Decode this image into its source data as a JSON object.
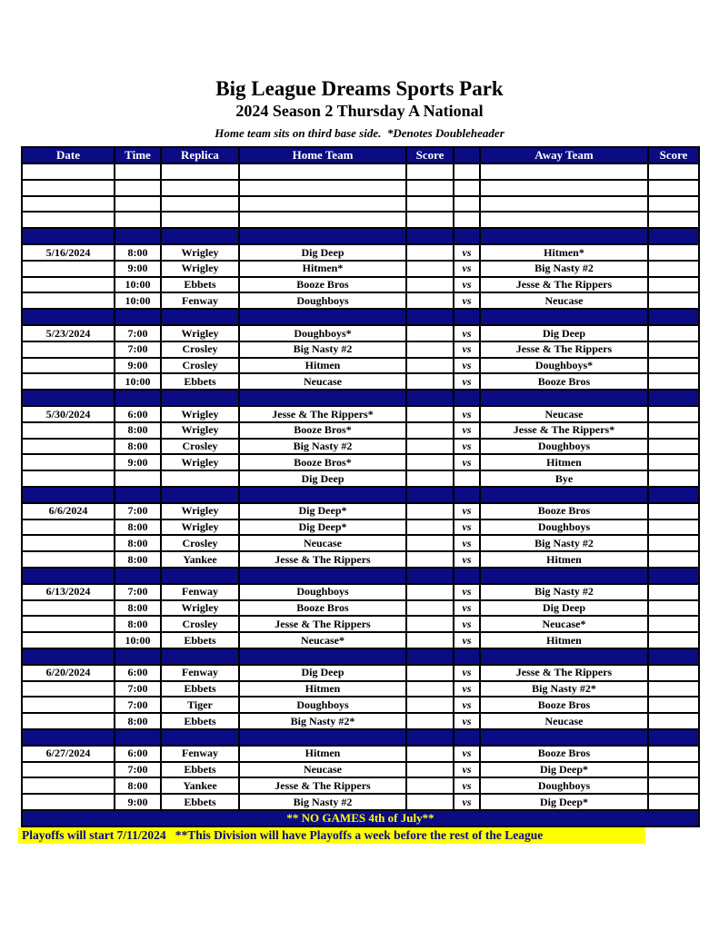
{
  "page": {
    "title": "Big League Dreams Sports Park",
    "subtitle": "2024 Season 2 Thursday A National",
    "note": "Home team sits on third base side.  *Denotes Doubleheader"
  },
  "colors": {
    "navy": "#0b0b84",
    "yellow": "#ffff00",
    "border": "#000000",
    "header_text": "#ffffff"
  },
  "table": {
    "headers": [
      "Date",
      "Time",
      "Replica",
      "Home Team",
      "Score",
      "",
      "Away Team",
      "Score"
    ],
    "empty_leading_rows": 4,
    "blocks": [
      {
        "date": "5/16/2024",
        "games": [
          {
            "time": "8:00",
            "replica": "Wrigley",
            "home": "Dig Deep",
            "home_score": "",
            "vs": "vs",
            "away": "Hitmen*",
            "away_score": ""
          },
          {
            "time": "9:00",
            "replica": "Wrigley",
            "home": "Hitmen*",
            "home_score": "",
            "vs": "vs",
            "away": "Big Nasty #2",
            "away_score": ""
          },
          {
            "time": "10:00",
            "replica": "Ebbets",
            "home": "Booze Bros",
            "home_score": "",
            "vs": "vs",
            "away": "Jesse & The Rippers",
            "away_score": ""
          },
          {
            "time": "10:00",
            "replica": "Fenway",
            "home": "Doughboys",
            "home_score": "",
            "vs": "vs",
            "away": "Neucase",
            "away_score": ""
          }
        ]
      },
      {
        "date": "5/23/2024",
        "games": [
          {
            "time": "7:00",
            "replica": "Wrigley",
            "home": "Doughboys*",
            "home_score": "",
            "vs": "vs",
            "away": "Dig Deep",
            "away_score": ""
          },
          {
            "time": "7:00",
            "replica": "Crosley",
            "home": "Big Nasty #2",
            "home_score": "",
            "vs": "vs",
            "away": "Jesse & The Rippers",
            "away_score": ""
          },
          {
            "time": "9:00",
            "replica": "Crosley",
            "home": "Hitmen",
            "home_score": "",
            "vs": "vs",
            "away": "Doughboys*",
            "away_score": ""
          },
          {
            "time": "10:00",
            "replica": "Ebbets",
            "home": "Neucase",
            "home_score": "",
            "vs": "vs",
            "away": "Booze Bros",
            "away_score": ""
          }
        ]
      },
      {
        "date": "5/30/2024",
        "games": [
          {
            "time": "6:00",
            "replica": "Wrigley",
            "home": "Jesse & The Rippers*",
            "home_score": "",
            "vs": "vs",
            "away": "Neucase",
            "away_score": ""
          },
          {
            "time": "8:00",
            "replica": "Wrigley",
            "home": "Booze Bros*",
            "home_score": "",
            "vs": "vs",
            "away": "Jesse & The Rippers*",
            "away_score": ""
          },
          {
            "time": "8:00",
            "replica": "Crosley",
            "home": "Big Nasty #2",
            "home_score": "",
            "vs": "vs",
            "away": "Doughboys",
            "away_score": ""
          },
          {
            "time": "9:00",
            "replica": "Wrigley",
            "home": "Booze Bros*",
            "home_score": "",
            "vs": "vs",
            "away": "Hitmen",
            "away_score": ""
          },
          {
            "time": "",
            "replica": "",
            "home": "Dig Deep",
            "home_score": "",
            "vs": "",
            "away": "Bye",
            "away_score": ""
          }
        ]
      },
      {
        "date": "6/6/2024",
        "games": [
          {
            "time": "7:00",
            "replica": "Wrigley",
            "home": "Dig Deep*",
            "home_score": "",
            "vs": "vs",
            "away": "Booze Bros",
            "away_score": ""
          },
          {
            "time": "8:00",
            "replica": "Wrigley",
            "home": "Dig Deep*",
            "home_score": "",
            "vs": "vs",
            "away": "Doughboys",
            "away_score": ""
          },
          {
            "time": "8:00",
            "replica": "Crosley",
            "home": "Neucase",
            "home_score": "",
            "vs": "vs",
            "away": "Big Nasty #2",
            "away_score": ""
          },
          {
            "time": "8:00",
            "replica": "Yankee",
            "home": "Jesse & The Rippers",
            "home_score": "",
            "vs": "vs",
            "away": "Hitmen",
            "away_score": ""
          }
        ]
      },
      {
        "date": "6/13/2024",
        "games": [
          {
            "time": "7:00",
            "replica": "Fenway",
            "home": "Doughboys",
            "home_score": "",
            "vs": "vs",
            "away": "Big Nasty #2",
            "away_score": ""
          },
          {
            "time": "8:00",
            "replica": "Wrigley",
            "home": "Booze Bros",
            "home_score": "",
            "vs": "vs",
            "away": "Dig Deep",
            "away_score": ""
          },
          {
            "time": "8:00",
            "replica": "Crosley",
            "home": "Jesse & The Rippers",
            "home_score": "",
            "vs": "vs",
            "away": "Neucase*",
            "away_score": ""
          },
          {
            "time": "10:00",
            "replica": "Ebbets",
            "home": "Neucase*",
            "home_score": "",
            "vs": "vs",
            "away": "Hitmen",
            "away_score": ""
          }
        ]
      },
      {
        "date": "6/20/2024",
        "games": [
          {
            "time": "6:00",
            "replica": "Fenway",
            "home": "Dig Deep",
            "home_score": "",
            "vs": "vs",
            "away": "Jesse & The Rippers",
            "away_score": ""
          },
          {
            "time": "7:00",
            "replica": "Ebbets",
            "home": "Hitmen",
            "home_score": "",
            "vs": "vs",
            "away": "Big Nasty #2*",
            "away_score": ""
          },
          {
            "time": "7:00",
            "replica": "Tiger",
            "home": "Doughboys",
            "home_score": "",
            "vs": "vs",
            "away": "Booze Bros",
            "away_score": ""
          },
          {
            "time": "8:00",
            "replica": "Ebbets",
            "home": "Big Nasty #2*",
            "home_score": "",
            "vs": "vs",
            "away": "Neucase",
            "away_score": ""
          }
        ]
      },
      {
        "date": "6/27/2024",
        "games": [
          {
            "time": "6:00",
            "replica": "Fenway",
            "home": "Hitmen",
            "home_score": "",
            "vs": "vs",
            "away": "Booze Bros",
            "away_score": ""
          },
          {
            "time": "7:00",
            "replica": "Ebbets",
            "home": "Neucase",
            "home_score": "",
            "vs": "vs",
            "away": "Dig Deep*",
            "away_score": ""
          },
          {
            "time": "8:00",
            "replica": "Yankee",
            "home": "Jesse & The Rippers",
            "home_score": "",
            "vs": "vs",
            "away": "Doughboys",
            "away_score": ""
          },
          {
            "time": "9:00",
            "replica": "Ebbets",
            "home": "Big Nasty #2",
            "home_score": "",
            "vs": "vs",
            "away": "Dig Deep*",
            "away_score": ""
          }
        ]
      }
    ],
    "no_games_banner": "** NO GAMES 4th of July**",
    "footer": "Playoffs will start 7/11/2024   **This Division will have Playoffs a week before the rest of the League"
  }
}
